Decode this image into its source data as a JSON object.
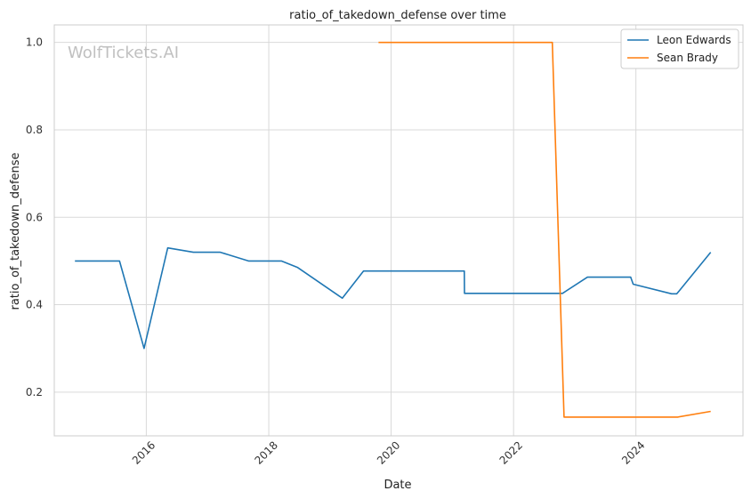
{
  "chart_data": {
    "type": "line",
    "title": "ratio_of_takedown_defense over time",
    "xlabel": "Date",
    "ylabel": "ratio_of_takedown_defense",
    "watermark": "WolfTickets.AI",
    "x_ticks": [
      "2016",
      "2018",
      "2020",
      "2022",
      "2024"
    ],
    "y_ticks": [
      "0.2",
      "0.4",
      "0.6",
      "0.8",
      "1.0"
    ],
    "xlim": [
      "2014-07-01",
      "2025-10-01"
    ],
    "ylim": [
      0.1,
      1.04
    ],
    "grid": true,
    "legend_position": "top-right",
    "series": [
      {
        "name": "Leon Edwards",
        "color": "#1f77b4",
        "points": [
          [
            "2014-11-01",
            0.5
          ],
          [
            "2015-07-25",
            0.5
          ],
          [
            "2015-12-19",
            0.3
          ],
          [
            "2016-05-08",
            0.53
          ],
          [
            "2016-10-08",
            0.52
          ],
          [
            "2017-03-18",
            0.52
          ],
          [
            "2017-09-02",
            0.5
          ],
          [
            "2018-03-17",
            0.5
          ],
          [
            "2018-06-23",
            0.485
          ],
          [
            "2019-03-16",
            0.415
          ],
          [
            "2019-07-20",
            0.477
          ],
          [
            "2021-03-13",
            0.477
          ],
          [
            "2021-03-14",
            0.426
          ],
          [
            "2022-10-20",
            0.426
          ],
          [
            "2023-03-18",
            0.463
          ],
          [
            "2023-12-01",
            0.463
          ],
          [
            "2023-12-16",
            0.447
          ],
          [
            "2024-08-01",
            0.425
          ],
          [
            "2024-09-01",
            0.425
          ],
          [
            "2025-03-22",
            0.52
          ]
        ]
      },
      {
        "name": "Sean Brady",
        "color": "#ff7f0e",
        "points": [
          [
            "2019-10-18",
            1.0
          ],
          [
            "2022-08-20",
            1.0
          ],
          [
            "2022-10-29",
            0.143
          ],
          [
            "2024-09-07",
            0.143
          ],
          [
            "2025-03-22",
            0.156
          ]
        ]
      }
    ]
  }
}
